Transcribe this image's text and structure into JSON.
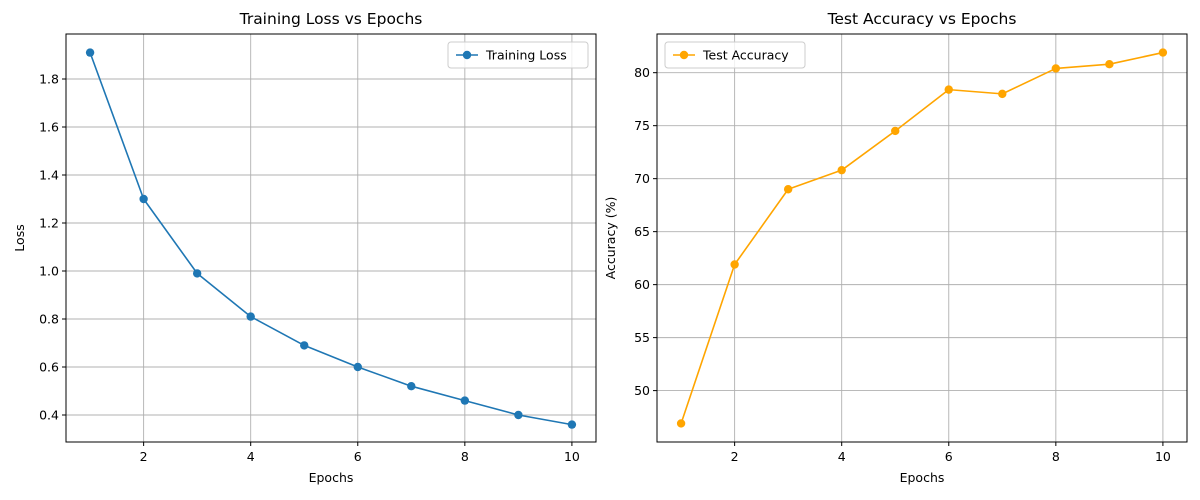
{
  "chart_data": [
    {
      "type": "line",
      "title": "Training Loss vs Epochs",
      "xlabel": "Epochs",
      "ylabel": "Loss",
      "x": [
        1,
        2,
        3,
        4,
        5,
        6,
        7,
        8,
        9,
        10
      ],
      "series": [
        {
          "name": "Training Loss",
          "color": "#1f77b4",
          "values": [
            1.91,
            1.3,
            0.99,
            0.81,
            0.69,
            0.6,
            0.52,
            0.46,
            0.4,
            0.36
          ]
        }
      ],
      "xlim": [
        0.55,
        10.45
      ],
      "ylim": [
        0.2875,
        1.9875
      ],
      "xticks": [
        2,
        4,
        6,
        8,
        10
      ],
      "xtick_labels": [
        "2",
        "4",
        "6",
        "8",
        "10"
      ],
      "yticks": [
        0.4,
        0.6,
        0.8,
        1.0,
        1.2,
        1.4,
        1.6,
        1.8
      ],
      "ytick_labels": [
        "0.4",
        "0.6",
        "0.8",
        "1.0",
        "1.2",
        "1.4",
        "1.6",
        "1.8"
      ],
      "grid": true,
      "legend": "top-right"
    },
    {
      "type": "line",
      "title": "Test Accuracy vs Epochs",
      "xlabel": "Epochs",
      "ylabel": "Accuracy (%)",
      "x": [
        1,
        2,
        3,
        4,
        5,
        6,
        7,
        8,
        9,
        10
      ],
      "series": [
        {
          "name": "Test Accuracy",
          "color": "#ffa500",
          "values": [
            46.9,
            61.9,
            69.0,
            70.8,
            74.5,
            78.4,
            78.0,
            80.4,
            80.8,
            81.9
          ]
        }
      ],
      "xlim": [
        0.55,
        10.45
      ],
      "ylim": [
        45.15,
        83.65
      ],
      "xticks": [
        2,
        4,
        6,
        8,
        10
      ],
      "xtick_labels": [
        "2",
        "4",
        "6",
        "8",
        "10"
      ],
      "yticks": [
        50,
        55,
        60,
        65,
        70,
        75,
        80
      ],
      "ytick_labels": [
        "50",
        "55",
        "60",
        "65",
        "70",
        "75",
        "80"
      ],
      "grid": true,
      "legend": "top-left"
    }
  ]
}
